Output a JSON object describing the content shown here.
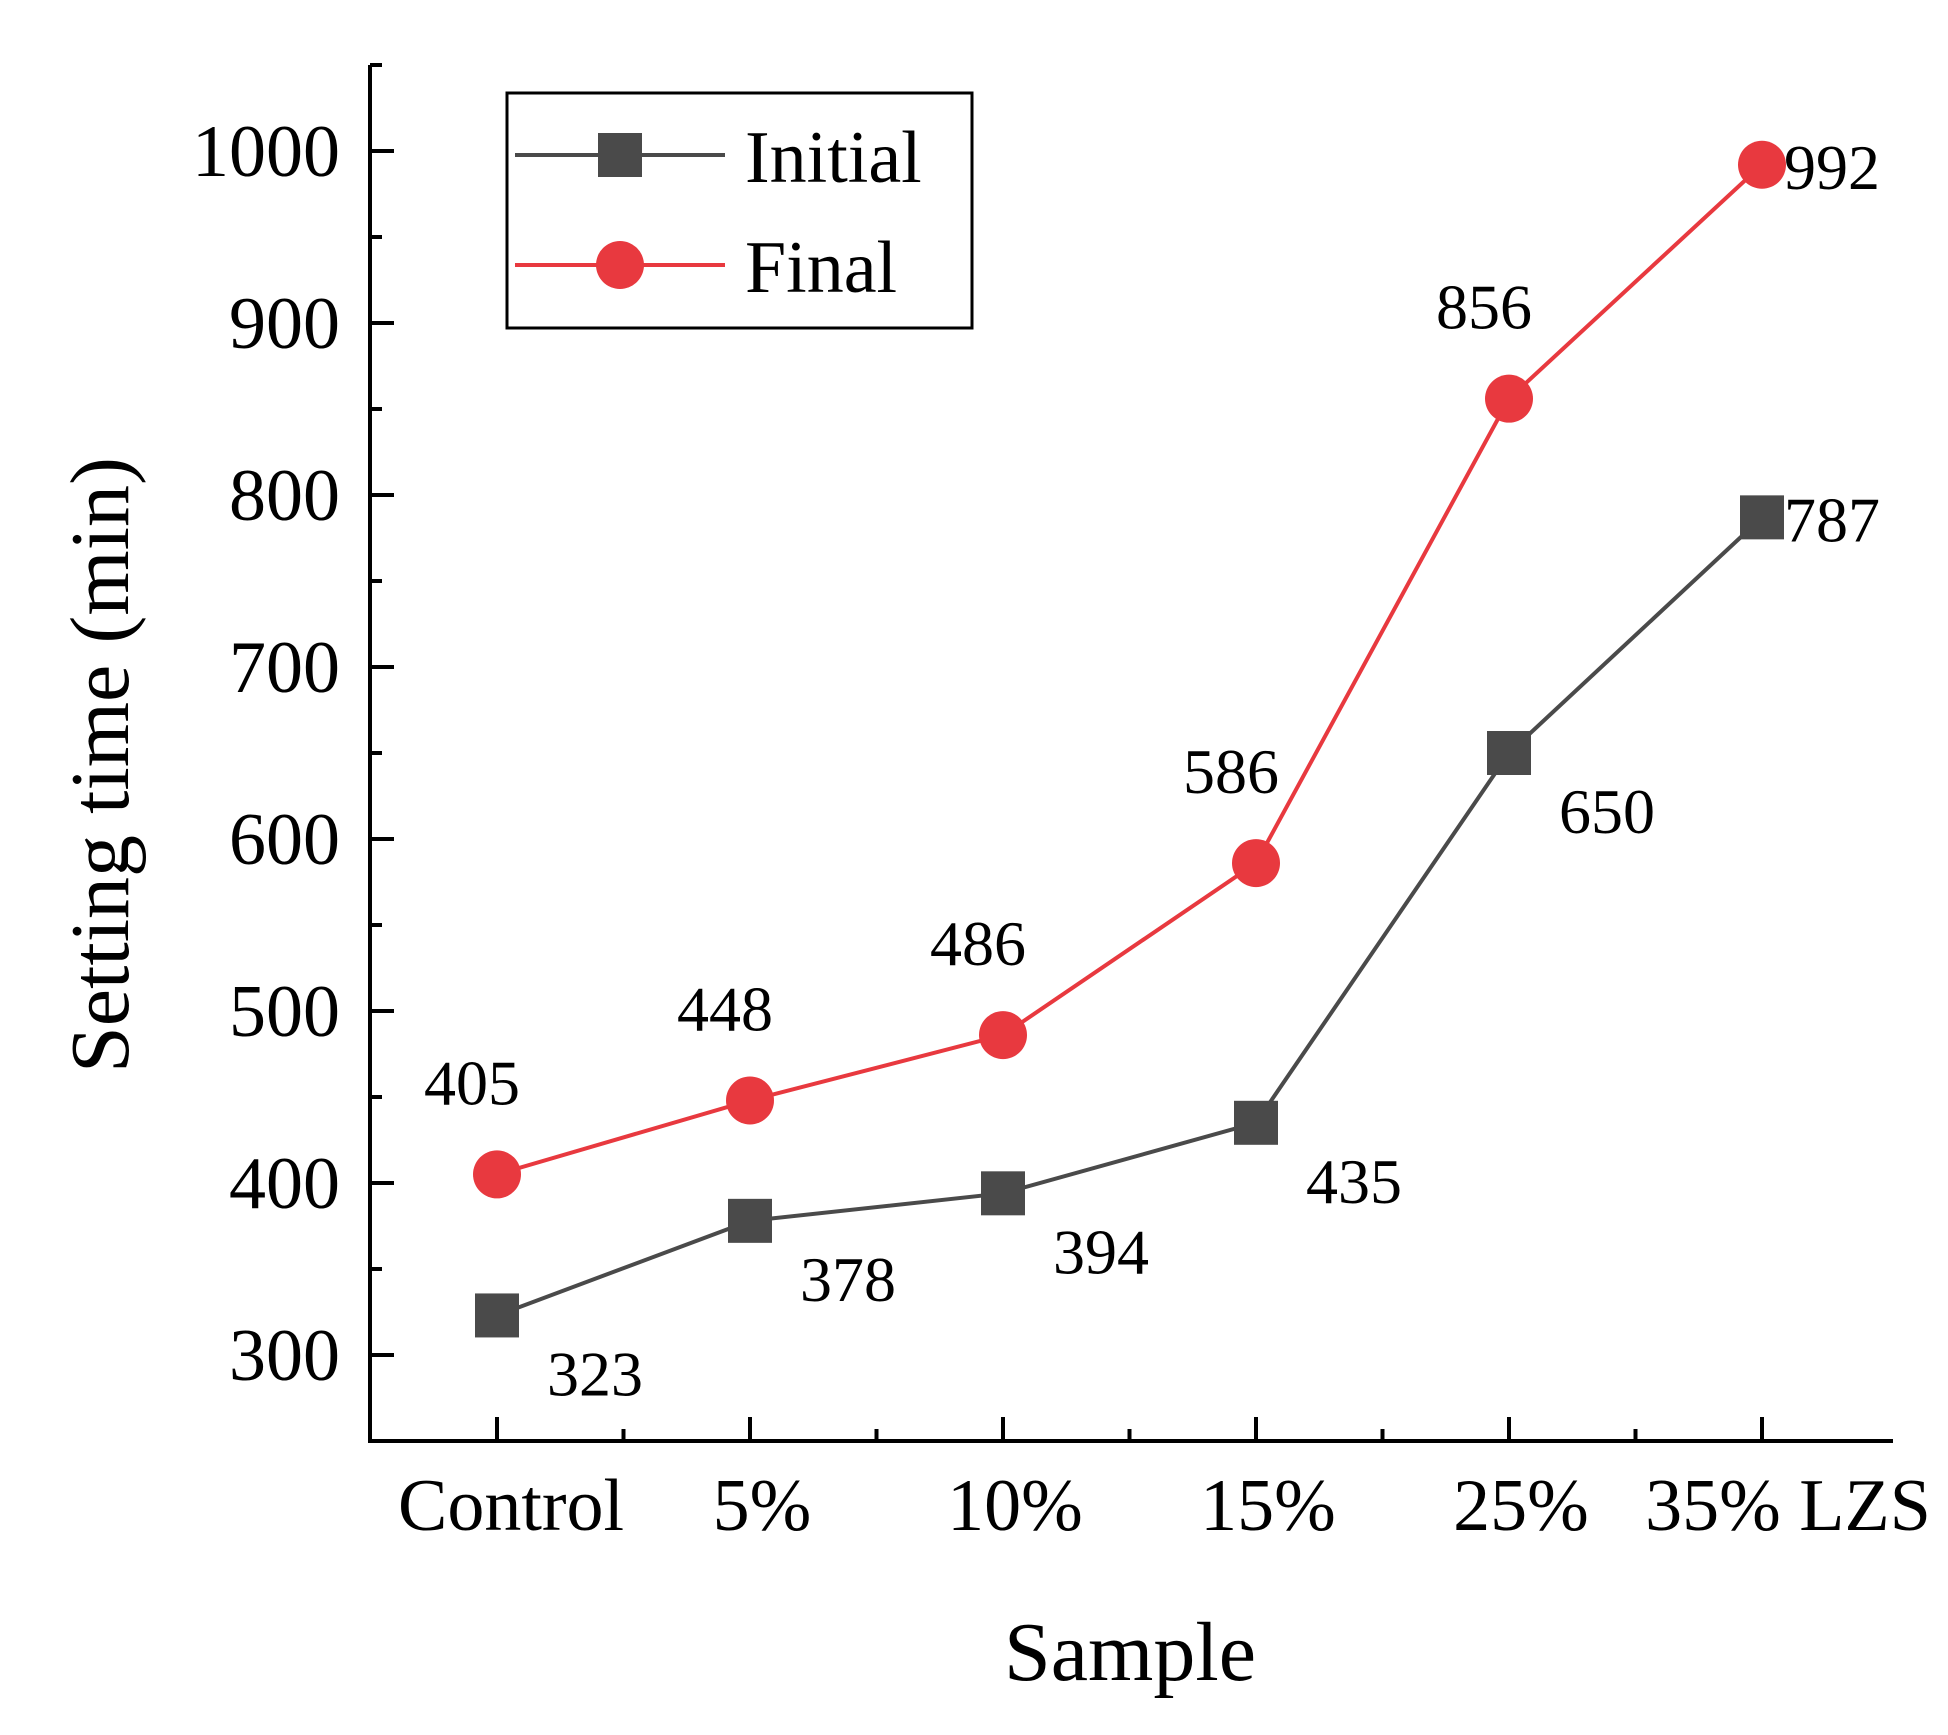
{
  "chart_data": {
    "type": "line",
    "xlabel": "Sample",
    "ylabel": "Setting time (min)",
    "categories": [
      "Control",
      "5%",
      "10%",
      "15%",
      "25%",
      "35% LZS"
    ],
    "ylim": [
      250,
      1050
    ],
    "yticks": [
      300,
      400,
      500,
      600,
      700,
      800,
      900,
      1000
    ],
    "grid": false,
    "legend_position": "top-left",
    "series": [
      {
        "name": "Initial",
        "marker": "square",
        "color": "#4a4a4a",
        "values": [
          323,
          378,
          394,
          435,
          650,
          787
        ]
      },
      {
        "name": "Final",
        "marker": "circle",
        "color": "#e8393f",
        "values": [
          405,
          448,
          486,
          586,
          856,
          992
        ]
      }
    ]
  }
}
